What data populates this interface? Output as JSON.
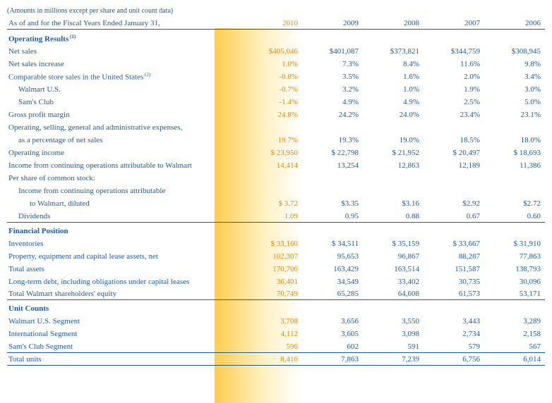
{
  "meta": {
    "note": "(Amounts in millions except per share and unit count data)",
    "asof": "As of and for the Fiscal Years Ended January 31,"
  },
  "years": [
    "2010",
    "2009",
    "2008",
    "2007",
    "2006"
  ],
  "colors": {
    "text": "#1f5a99",
    "accent": "#e68a00",
    "gradient_from": "#ffc83c",
    "gradient_to": "#ffffff",
    "rule": "#1f5a99"
  },
  "sections": [
    {
      "title": "Operating Results",
      "sup": "(1)",
      "rows": [
        {
          "label": "Net sales",
          "vals": [
            "$405,046",
            "$401,087",
            "$373,821",
            "$344,759",
            "$308,945"
          ]
        },
        {
          "label": "Net sales increase",
          "vals": [
            "1.0%",
            "7.3%",
            "8.4%",
            "11.6%",
            "9.8%"
          ]
        },
        {
          "label": "Comparable store sales in the United States",
          "sup": "(2)",
          "vals": [
            "-0.8%",
            "3.5%",
            "1.6%",
            "2.0%",
            "3.4%"
          ]
        },
        {
          "label": "Walmart U.S.",
          "indent": 1,
          "vals": [
            "-0.7%",
            "3.2%",
            "1.0%",
            "1.9%",
            "3.0%"
          ]
        },
        {
          "label": "Sam's Club",
          "indent": 1,
          "vals": [
            "-1.4%",
            "4.9%",
            "4.9%",
            "2.5%",
            "5.0%"
          ]
        },
        {
          "label": "Gross profit margin",
          "vals": [
            "24.8%",
            "24.2%",
            "24.0%",
            "23.4%",
            "23.1%"
          ]
        },
        {
          "label": "Operating, selling, general and administrative expenses,",
          "vals": [
            "",
            "",
            "",
            "",
            ""
          ]
        },
        {
          "label": "as a percentage of net sales",
          "indent": 1,
          "vals": [
            "19.7%",
            "19.3%",
            "19.0%",
            "18.5%",
            "18.0%"
          ]
        },
        {
          "label": "Operating income",
          "vals": [
            "$  23,950",
            "$  22,798",
            "$  21,952",
            "$  20,497",
            "$  18,693"
          ]
        },
        {
          "label": "Income from continuing operations attributable to Walmart",
          "vals": [
            "14,414",
            "13,254",
            "12,863",
            "12,189",
            "11,386"
          ]
        },
        {
          "label": "Per share of common stock:",
          "vals": [
            "",
            "",
            "",
            "",
            ""
          ]
        },
        {
          "label": "Income from continuing operations attributable",
          "indent": 1,
          "vals": [
            "",
            "",
            "",
            "",
            ""
          ]
        },
        {
          "label": "to Walmart, diluted",
          "indent": 2,
          "vals": [
            "$      3.72",
            "$3.35",
            "$3.16",
            "$2.92",
            "$2.72"
          ]
        },
        {
          "label": "Dividends",
          "indent": 1,
          "vals": [
            "1.09",
            "0.95",
            "0.88",
            "0.67",
            "0.60"
          ],
          "rule_bot": true
        }
      ]
    },
    {
      "title": "Financial Position",
      "rows": [
        {
          "label": "Inventories",
          "vals": [
            "$  33,160",
            "$ 34,511",
            "$ 35,159",
            "$ 33,667",
            "$ 31,910"
          ]
        },
        {
          "label": "Property, equipment and capital lease assets, net",
          "vals": [
            "102,307",
            "95,653",
            "96,867",
            "88,287",
            "77,863"
          ]
        },
        {
          "label": "Total assets",
          "vals": [
            "170,706",
            "163,429",
            "163,514",
            "151,587",
            "138,793"
          ]
        },
        {
          "label": "Long-term debt, including obligations under capital leases",
          "vals": [
            "36,401",
            "34,549",
            "33,402",
            "30,735",
            "30,096"
          ]
        },
        {
          "label": "Total Walmart shareholders' equity",
          "vals": [
            "70,749",
            "65,285",
            "64,608",
            "61,573",
            "53,171"
          ],
          "rule_bot": true
        }
      ]
    },
    {
      "title": "Unit Counts",
      "rows": [
        {
          "label": "Walmart U.S. Segment",
          "vals": [
            "3,708",
            "3,656",
            "3,550",
            "3,443",
            "3,289"
          ]
        },
        {
          "label": "International Segment",
          "vals": [
            "4,112",
            "3,605",
            "3,098",
            "2,734",
            "2,158"
          ]
        },
        {
          "label": "Sam's Club Segment",
          "vals": [
            "596",
            "602",
            "591",
            "579",
            "567"
          ],
          "rule_bot": true
        },
        {
          "label": "Total units",
          "vals": [
            "8,416",
            "7,863",
            "7,239",
            "6,756",
            "6,014"
          ],
          "rule_bot": true
        }
      ]
    }
  ]
}
